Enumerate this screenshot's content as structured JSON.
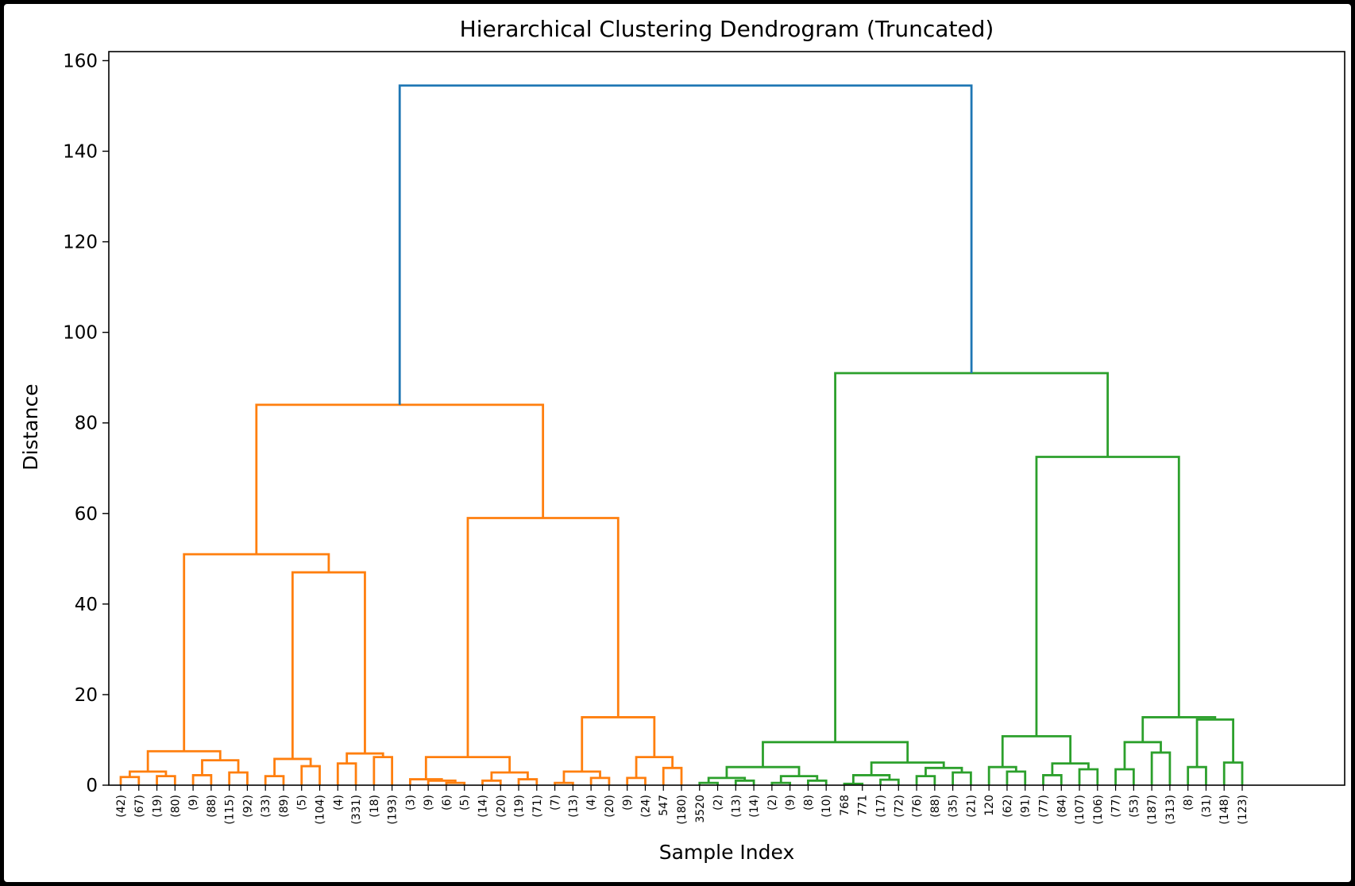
{
  "chart_data": {
    "type": "dendrogram",
    "title": "Hierarchical Clustering Dendrogram (Truncated)",
    "xlabel": "Sample Index",
    "ylabel": "Distance",
    "ylim": [
      0,
      162
    ],
    "yticks": [
      0,
      20,
      40,
      60,
      80,
      100,
      120,
      140,
      160
    ],
    "grid": false,
    "colors": {
      "root": "#1f77b4",
      "cluster_1": "#ff7f0e",
      "cluster_2": "#2ca02c"
    },
    "leaves": [
      "(42)",
      "(67)",
      "(19)",
      "(80)",
      "(9)",
      "(88)",
      "(115)",
      "(92)",
      "(33)",
      "(89)",
      "(5)",
      "(104)",
      "(4)",
      "(331)",
      "(18)",
      "(193)",
      "(3)",
      "(9)",
      "(6)",
      "(5)",
      "(14)",
      "(20)",
      "(19)",
      "(71)",
      "(7)",
      "(13)",
      "(4)",
      "(20)",
      "(9)",
      "(24)",
      "547",
      "(180)",
      "3520",
      "(2)",
      "(13)",
      "(14)",
      "(2)",
      "(9)",
      "(8)",
      "(10)",
      "768",
      "771",
      "(17)",
      "(72)",
      "(76)",
      "(88)",
      "(35)",
      "(21)",
      "120",
      "(62)",
      "(91)",
      "(77)",
      "(84)",
      "(107)",
      "(106)",
      "(77)",
      "(53)",
      "(187)",
      "(313)",
      "(8)",
      "(31)",
      "(148)",
      "(123)"
    ],
    "tree": {
      "d": 154.5,
      "c": "root",
      "ch": [
        {
          "d": 84,
          "c": "cluster_1",
          "ch": [
            {
              "d": 51,
              "ch": [
                {
                  "d": 7.5,
                  "ch": [
                    {
                      "d": 3,
                      "ch": [
                        {
                          "d": 1.8,
                          "ch": [
                            0,
                            1
                          ]
                        },
                        {
                          "d": 2,
                          "ch": [
                            2,
                            3
                          ]
                        }
                      ]
                    },
                    {
                      "d": 5.5,
                      "ch": [
                        {
                          "d": 2.2,
                          "ch": [
                            4,
                            5
                          ]
                        },
                        {
                          "d": 2.8,
                          "ch": [
                            6,
                            7
                          ]
                        }
                      ]
                    }
                  ]
                },
                {
                  "d": 47,
                  "ch": [
                    {
                      "d": 5.8,
                      "ch": [
                        {
                          "d": 2,
                          "ch": [
                            8,
                            9
                          ]
                        },
                        {
                          "d": 4.2,
                          "ch": [
                            10,
                            11
                          ]
                        }
                      ]
                    },
                    {
                      "d": 7,
                      "ch": [
                        {
                          "d": 4.8,
                          "ch": [
                            12,
                            13
                          ]
                        },
                        {
                          "d": 6.2,
                          "ch": [
                            14,
                            15
                          ]
                        }
                      ]
                    }
                  ]
                }
              ]
            },
            {
              "d": 59,
              "ch": [
                {
                  "d": 6.2,
                  "ch": [
                    {
                      "d": 1.3,
                      "ch": [
                        16,
                        {
                          "d": 1,
                          "ch": [
                            17,
                            {
                              "d": 0.5,
                              "ch": [
                                18,
                                19
                              ]
                            }
                          ]
                        }
                      ]
                    },
                    {
                      "d": 2.8,
                      "ch": [
                        {
                          "d": 1,
                          "ch": [
                            20,
                            21
                          ]
                        },
                        {
                          "d": 1.3,
                          "ch": [
                            22,
                            23
                          ]
                        }
                      ]
                    }
                  ]
                },
                {
                  "d": 15,
                  "ch": [
                    {
                      "d": 3,
                      "ch": [
                        {
                          "d": 0.5,
                          "ch": [
                            24,
                            25
                          ]
                        },
                        {
                          "d": 1.6,
                          "ch": [
                            26,
                            27
                          ]
                        }
                      ]
                    },
                    {
                      "d": 6.2,
                      "ch": [
                        {
                          "d": 1.6,
                          "ch": [
                            28,
                            29
                          ]
                        },
                        {
                          "d": 3.8,
                          "ch": [
                            30,
                            31
                          ]
                        }
                      ]
                    }
                  ]
                }
              ]
            }
          ]
        },
        {
          "d": 91,
          "c": "cluster_2",
          "ch": [
            {
              "d": 9.5,
              "ch": [
                {
                  "d": 4,
                  "ch": [
                    {
                      "d": 1.6,
                      "ch": [
                        {
                          "d": 0.5,
                          "ch": [
                            32,
                            33
                          ]
                        },
                        {
                          "d": 1,
                          "ch": [
                            34,
                            35
                          ]
                        }
                      ]
                    },
                    {
                      "d": 2,
                      "ch": [
                        {
                          "d": 0.5,
                          "ch": [
                            36,
                            37
                          ]
                        },
                        {
                          "d": 1,
                          "ch": [
                            38,
                            39
                          ]
                        }
                      ]
                    }
                  ]
                },
                {
                  "d": 5,
                  "ch": [
                    {
                      "d": 2.2,
                      "ch": [
                        {
                          "d": 0.3,
                          "ch": [
                            40,
                            41
                          ]
                        },
                        {
                          "d": 1.2,
                          "ch": [
                            42,
                            43
                          ]
                        }
                      ]
                    },
                    {
                      "d": 3.8,
                      "ch": [
                        {
                          "d": 2,
                          "ch": [
                            44,
                            45
                          ]
                        },
                        {
                          "d": 2.8,
                          "ch": [
                            46,
                            47
                          ]
                        }
                      ]
                    }
                  ]
                }
              ]
            },
            {
              "d": 72.5,
              "ch": [
                {
                  "d": 10.8,
                  "ch": [
                    {
                      "d": 4,
                      "ch": [
                        48,
                        {
                          "d": 3,
                          "ch": [
                            49,
                            50
                          ]
                        }
                      ]
                    },
                    {
                      "d": 4.8,
                      "ch": [
                        {
                          "d": 2.2,
                          "ch": [
                            51,
                            52
                          ]
                        },
                        {
                          "d": 3.5,
                          "ch": [
                            53,
                            54
                          ]
                        }
                      ]
                    }
                  ]
                },
                {
                  "d": 15,
                  "ch": [
                    {
                      "d": 9.5,
                      "ch": [
                        {
                          "d": 3.5,
                          "ch": [
                            55,
                            56
                          ]
                        },
                        {
                          "d": 7.2,
                          "ch": [
                            57,
                            58
                          ]
                        }
                      ]
                    },
                    {
                      "d": 14.5,
                      "ch": [
                        {
                          "d": 4,
                          "ch": [
                            59,
                            60
                          ]
                        },
                        {
                          "d": 5,
                          "ch": [
                            61,
                            62
                          ]
                        }
                      ]
                    }
                  ]
                }
              ]
            }
          ]
        }
      ]
    }
  }
}
